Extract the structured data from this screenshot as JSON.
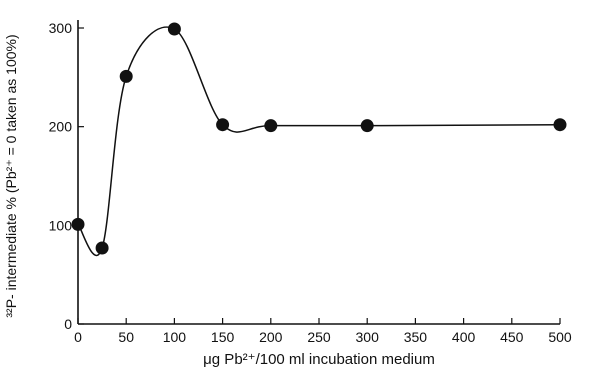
{
  "chart_data": {
    "type": "line",
    "title": "",
    "xlabel": "μg Pb²⁺/100 ml incubation medium",
    "ylabel": "³²P- intermediate % (Pb²⁺ = 0 taken as 100%)",
    "x_ticks": [
      "0",
      "50",
      "100",
      "150",
      "200",
      "250",
      "300",
      "350",
      "400",
      "450",
      "500"
    ],
    "y_ticks": [
      "0",
      "100",
      "200",
      "300"
    ],
    "xlim": [
      0,
      500
    ],
    "ylim": [
      0,
      300
    ],
    "grid": false,
    "series": [
      {
        "x": [
          0,
          25,
          50,
          100,
          150,
          200,
          300,
          500
        ],
        "y": [
          101,
          77,
          251,
          299,
          202,
          201,
          201,
          202
        ]
      }
    ],
    "colors": {
      "line": "#111111",
      "marker": "#111111"
    }
  }
}
